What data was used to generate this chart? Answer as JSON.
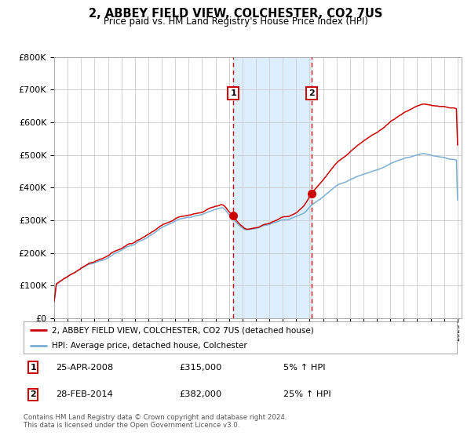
{
  "title": "2, ABBEY FIELD VIEW, COLCHESTER, CO2 7US",
  "subtitle": "Price paid vs. HM Land Registry's House Price Index (HPI)",
  "x_start_year": 1995,
  "x_end_year": 2025,
  "y_min": 0,
  "y_max": 800000,
  "y_ticks": [
    0,
    100000,
    200000,
    300000,
    400000,
    500000,
    600000,
    700000,
    800000
  ],
  "purchase1_year": 2008.32,
  "purchase1_price": 315000,
  "purchase2_year": 2014.16,
  "purchase2_price": 382000,
  "red_line_color": "#cc0000",
  "blue_line_color": "#7ab0d4",
  "shade_color": "#ddeeff",
  "dashed_color": "#cc0000",
  "legend_label_red": "2, ABBEY FIELD VIEW, COLCHESTER, CO2 7US (detached house)",
  "legend_label_blue": "HPI: Average price, detached house, Colchester",
  "footnote": "Contains HM Land Registry data © Crown copyright and database right 2024.\nThis data is licensed under the Open Government Licence v3.0.",
  "table_row1": [
    "1",
    "25-APR-2008",
    "£315,000",
    "5% ↑ HPI"
  ],
  "table_row2": [
    "2",
    "28-FEB-2014",
    "£382,000",
    "25% ↑ HPI"
  ]
}
